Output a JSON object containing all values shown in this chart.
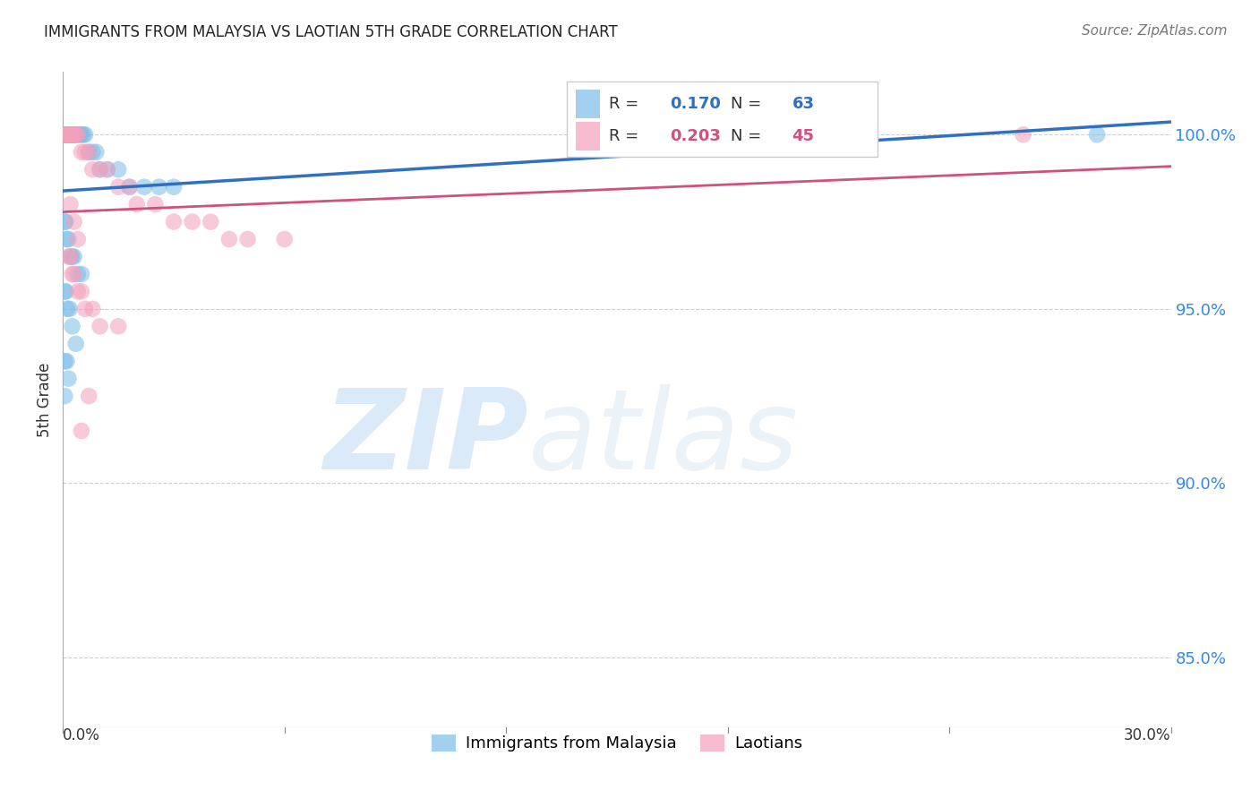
{
  "title": "IMMIGRANTS FROM MALAYSIA VS LAOTIAN 5TH GRADE CORRELATION CHART",
  "source": "Source: ZipAtlas.com",
  "ylabel": "5th Grade",
  "xlim": [
    0.0,
    30.0
  ],
  "ylim": [
    83.0,
    101.8
  ],
  "ytick_vals": [
    100.0,
    95.0,
    90.0,
    85.0
  ],
  "blue_R": 0.17,
  "blue_N": 63,
  "pink_R": 0.203,
  "pink_N": 45,
  "blue_color": "#7bbde8",
  "pink_color": "#f4a0bb",
  "blue_line_color": "#3070c0",
  "pink_line_color": "#d05080",
  "legend_label_blue": "Immigrants from Malaysia",
  "legend_label_pink": "Laotians",
  "blue_x": [
    0.05,
    0.07,
    0.08,
    0.09,
    0.1,
    0.1,
    0.11,
    0.12,
    0.13,
    0.14,
    0.15,
    0.16,
    0.17,
    0.18,
    0.19,
    0.2,
    0.21,
    0.22,
    0.23,
    0.24,
    0.25,
    0.26,
    0.27,
    0.28,
    0.29,
    0.3,
    0.3,
    0.35,
    0.4,
    0.45,
    0.5,
    0.55,
    0.6,
    0.7,
    0.8,
    0.9,
    1.0,
    1.2,
    1.5,
    1.8,
    2.2,
    2.6,
    3.0,
    0.05,
    0.07,
    0.1,
    0.15,
    0.2,
    0.25,
    0.3,
    0.4,
    0.5,
    0.05,
    0.08,
    0.12,
    0.18,
    0.25,
    0.35,
    0.05,
    0.1,
    0.15,
    0.05,
    28.0
  ],
  "blue_y": [
    100.0,
    100.0,
    100.0,
    100.0,
    100.0,
    100.0,
    100.0,
    100.0,
    100.0,
    100.0,
    100.0,
    100.0,
    100.0,
    100.0,
    100.0,
    100.0,
    100.0,
    100.0,
    100.0,
    100.0,
    100.0,
    100.0,
    100.0,
    100.0,
    100.0,
    100.0,
    100.0,
    100.0,
    100.0,
    100.0,
    100.0,
    100.0,
    100.0,
    99.5,
    99.5,
    99.5,
    99.0,
    99.0,
    99.0,
    98.5,
    98.5,
    98.5,
    98.5,
    97.5,
    97.5,
    97.0,
    97.0,
    96.5,
    96.5,
    96.5,
    96.0,
    96.0,
    95.5,
    95.5,
    95.0,
    95.0,
    94.5,
    94.0,
    93.5,
    93.5,
    93.0,
    92.5,
    100.0
  ],
  "pink_x": [
    0.05,
    0.08,
    0.1,
    0.12,
    0.15,
    0.18,
    0.2,
    0.22,
    0.25,
    0.28,
    0.3,
    0.35,
    0.4,
    0.5,
    0.6,
    0.7,
    0.8,
    1.0,
    1.2,
    1.5,
    1.8,
    2.0,
    2.5,
    3.0,
    3.5,
    4.0,
    4.5,
    5.0,
    6.0,
    0.15,
    0.2,
    0.25,
    0.3,
    0.4,
    0.5,
    0.6,
    0.8,
    1.0,
    1.5,
    0.2,
    0.3,
    0.4,
    0.5,
    0.7,
    26.0
  ],
  "pink_y": [
    100.0,
    100.0,
    100.0,
    100.0,
    100.0,
    100.0,
    100.0,
    100.0,
    100.0,
    100.0,
    100.0,
    100.0,
    100.0,
    99.5,
    99.5,
    99.5,
    99.0,
    99.0,
    99.0,
    98.5,
    98.5,
    98.0,
    98.0,
    97.5,
    97.5,
    97.5,
    97.0,
    97.0,
    97.0,
    96.5,
    96.5,
    96.0,
    96.0,
    95.5,
    95.5,
    95.0,
    95.0,
    94.5,
    94.5,
    98.0,
    97.5,
    97.0,
    91.5,
    92.5,
    100.0
  ],
  "watermark_zip": "ZIP",
  "watermark_atlas": "atlas",
  "background_color": "#ffffff",
  "grid_color": "#d0d0d0"
}
